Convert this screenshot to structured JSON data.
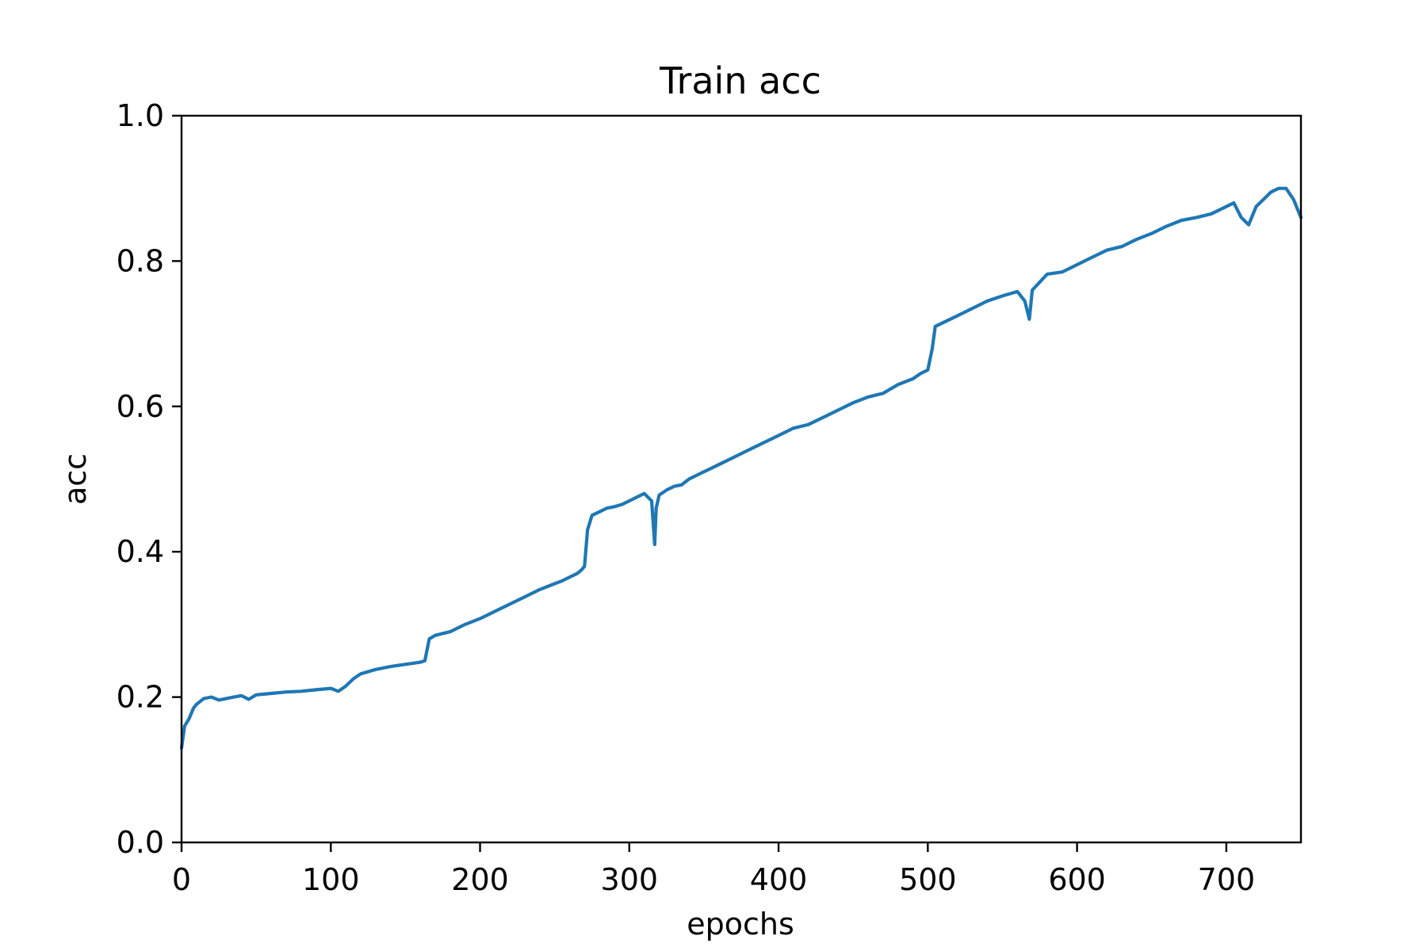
{
  "chart_data": {
    "type": "line",
    "title": "Train acc",
    "xlabel": "epochs",
    "ylabel": "acc",
    "xlim": [
      0,
      750
    ],
    "ylim": [
      0.0,
      1.0
    ],
    "grid": false,
    "x_ticks": [
      0,
      100,
      200,
      300,
      400,
      500,
      600,
      700
    ],
    "y_ticks": [
      0.0,
      0.2,
      0.4,
      0.6,
      0.8,
      1.0
    ],
    "x_tick_labels": [
      "0",
      "100",
      "200",
      "300",
      "400",
      "500",
      "600",
      "700"
    ],
    "y_tick_labels": [
      "0.0",
      "0.2",
      "0.4",
      "0.6",
      "0.8",
      "1.0"
    ],
    "series": [
      {
        "color": "#1f77b4",
        "x": [
          0,
          2,
          5,
          8,
          10,
          15,
          20,
          25,
          30,
          35,
          40,
          45,
          50,
          55,
          60,
          70,
          80,
          90,
          100,
          105,
          110,
          115,
          120,
          130,
          140,
          150,
          160,
          163,
          166,
          170,
          180,
          190,
          200,
          210,
          220,
          230,
          240,
          250,
          255,
          260,
          265,
          268,
          270,
          272,
          275,
          280,
          285,
          290,
          295,
          300,
          305,
          310,
          315,
          317,
          318,
          320,
          325,
          330,
          335,
          340,
          350,
          360,
          370,
          380,
          390,
          400,
          410,
          420,
          430,
          440,
          450,
          460,
          470,
          480,
          490,
          495,
          500,
          503,
          505,
          510,
          515,
          520,
          530,
          540,
          550,
          560,
          565,
          568,
          570,
          580,
          590,
          600,
          610,
          620,
          630,
          640,
          650,
          660,
          670,
          680,
          690,
          700,
          705,
          710,
          715,
          720,
          725,
          730,
          735,
          740,
          745,
          750
        ],
        "y": [
          0.13,
          0.16,
          0.17,
          0.185,
          0.19,
          0.198,
          0.2,
          0.196,
          0.198,
          0.2,
          0.202,
          0.197,
          0.203,
          0.204,
          0.205,
          0.207,
          0.208,
          0.21,
          0.212,
          0.208,
          0.215,
          0.225,
          0.232,
          0.238,
          0.242,
          0.245,
          0.248,
          0.25,
          0.28,
          0.285,
          0.29,
          0.3,
          0.308,
          0.318,
          0.328,
          0.338,
          0.348,
          0.356,
          0.36,
          0.365,
          0.37,
          0.375,
          0.38,
          0.43,
          0.45,
          0.455,
          0.46,
          0.462,
          0.465,
          0.47,
          0.475,
          0.48,
          0.47,
          0.41,
          0.46,
          0.478,
          0.485,
          0.49,
          0.492,
          0.5,
          0.51,
          0.52,
          0.53,
          0.54,
          0.55,
          0.56,
          0.57,
          0.575,
          0.585,
          0.595,
          0.605,
          0.613,
          0.618,
          0.63,
          0.638,
          0.645,
          0.65,
          0.68,
          0.71,
          0.715,
          0.72,
          0.725,
          0.735,
          0.745,
          0.752,
          0.758,
          0.745,
          0.72,
          0.76,
          0.782,
          0.785,
          0.795,
          0.805,
          0.815,
          0.82,
          0.83,
          0.838,
          0.848,
          0.856,
          0.86,
          0.865,
          0.875,
          0.88,
          0.86,
          0.85,
          0.875,
          0.885,
          0.895,
          0.9,
          0.9,
          0.885,
          0.86
        ]
      }
    ]
  }
}
